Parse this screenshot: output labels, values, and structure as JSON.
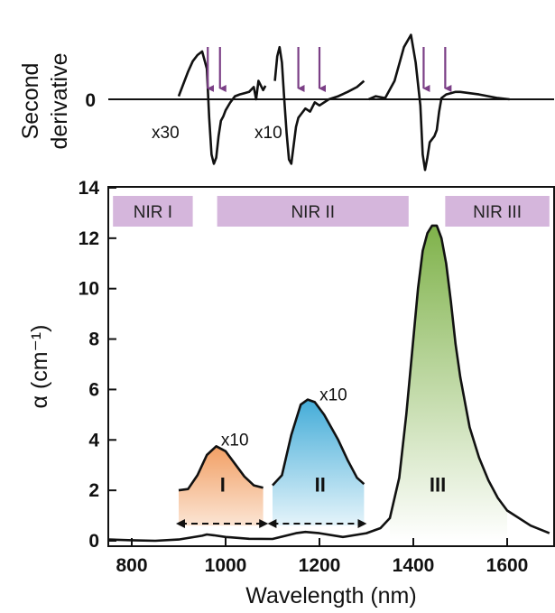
{
  "chart_data": [
    {
      "type": "line",
      "panel": "top",
      "ylabel_line1": "Second",
      "ylabel_line2": "derivative",
      "ytick_label": "0",
      "scale_labels": [
        "x30",
        "x10"
      ],
      "arrow_color": "#7b3f86",
      "arrow_x": [
        962,
        988,
        1155,
        1200,
        1422,
        1468
      ],
      "series": [
        {
          "segment": 1,
          "x": [
            900,
            910,
            920,
            930,
            940,
            950,
            960,
            965,
            970,
            975,
            980,
            985,
            990,
            995,
            1000,
            1010,
            1020,
            1030,
            1040,
            1050,
            1060,
            1065,
            1070,
            1080,
            1085
          ],
          "y": [
            0.05,
            0.25,
            0.45,
            0.62,
            0.72,
            0.78,
            0.5,
            -0.3,
            -0.9,
            -1.05,
            -0.95,
            -0.6,
            -0.35,
            -0.28,
            -0.18,
            -0.05,
            0.05,
            0.08,
            0.1,
            0.12,
            0.2,
            0.0,
            0.3,
            0.15,
            0.22
          ]
        },
        {
          "segment": 2,
          "x": [
            1105,
            1110,
            1115,
            1120,
            1125,
            1130,
            1135,
            1140,
            1145,
            1150,
            1155,
            1160,
            1170,
            1180,
            1190,
            1200,
            1220,
            1240,
            1260,
            1280,
            1295
          ],
          "y": [
            0.3,
            0.7,
            0.85,
            0.6,
            0.0,
            -0.55,
            -0.98,
            -1.05,
            -0.75,
            -0.45,
            -0.3,
            -0.25,
            -0.15,
            -0.2,
            -0.05,
            -0.1,
            0.0,
            0.05,
            0.12,
            0.2,
            0.3
          ]
        },
        {
          "segment": 3,
          "x": [
            1305,
            1320,
            1340,
            1360,
            1380,
            1395,
            1405,
            1415,
            1420,
            1425,
            1430,
            1435,
            1440,
            1445,
            1450,
            1455,
            1460,
            1470,
            1480,
            1490,
            1500,
            1520,
            1540,
            1560,
            1580,
            1605
          ],
          "y": [
            0.0,
            0.05,
            0.02,
            0.3,
            0.85,
            1.05,
            0.6,
            -0.1,
            -0.9,
            -1.15,
            -0.95,
            -0.7,
            -0.65,
            -0.6,
            -0.5,
            -0.2,
            0.02,
            0.08,
            0.1,
            0.12,
            0.12,
            0.1,
            0.08,
            0.05,
            0.02,
            0.0
          ]
        }
      ]
    },
    {
      "type": "line",
      "panel": "bottom",
      "xlabel": "Wavelength (nm)",
      "ylabel": "α (cm⁻¹)",
      "xlim": [
        750,
        1700
      ],
      "ylim": [
        -0.3,
        14
      ],
      "xticks": [
        800,
        1000,
        1200,
        1400,
        1600
      ],
      "yticks": [
        0,
        2,
        4,
        6,
        8,
        10,
        12,
        14
      ],
      "bands": [
        {
          "label": "NIR I",
          "start": 760,
          "end": 930
        },
        {
          "label": "NIR II",
          "start": 982,
          "end": 1390
        },
        {
          "label": "NIR III",
          "start": 1468,
          "end": 1690
        }
      ],
      "band_color": "#d5b6dc",
      "series": [
        {
          "x": [
            750,
            800,
            850,
            900,
            950,
            960,
            975,
            1000,
            1050,
            1100,
            1150,
            1170,
            1200,
            1250,
            1300,
            1330,
            1350,
            1370,
            1385,
            1400,
            1410,
            1420,
            1430,
            1440,
            1450,
            1460,
            1470,
            1480,
            1490,
            1500,
            1520,
            1540,
            1560,
            1580,
            1600,
            1650,
            1690
          ],
          "y": [
            0.05,
            0.02,
            0.0,
            0.05,
            0.2,
            0.25,
            0.22,
            0.15,
            0.08,
            0.07,
            0.3,
            0.35,
            0.3,
            0.15,
            0.3,
            0.5,
            0.9,
            2.5,
            5.0,
            8.0,
            10.0,
            11.5,
            12.2,
            12.5,
            12.5,
            12.0,
            11.0,
            9.5,
            7.8,
            6.5,
            4.5,
            3.3,
            2.4,
            1.7,
            1.2,
            0.6,
            0.3
          ]
        }
      ],
      "insets": [
        {
          "label": "I",
          "scale": "x10",
          "color": "#f2a46b",
          "x": [
            900,
            920,
            940,
            960,
            980,
            1000,
            1020,
            1040,
            1060,
            1080
          ],
          "y": [
            2.0,
            2.05,
            2.6,
            3.4,
            3.75,
            3.55,
            3.05,
            2.55,
            2.2,
            2.1
          ]
        },
        {
          "label": "II",
          "scale": "x10",
          "color": "#4db3d9",
          "x": [
            1100,
            1120,
            1140,
            1160,
            1175,
            1190,
            1210,
            1240,
            1260,
            1280,
            1295
          ],
          "y": [
            2.2,
            2.6,
            4.2,
            5.4,
            5.6,
            5.5,
            5.0,
            4.0,
            3.2,
            2.5,
            2.25
          ]
        }
      ],
      "peak_III_label": "III",
      "peak_III_color": "#86b54c",
      "ranges": [
        {
          "start": 900,
          "end": 1085
        },
        {
          "start": 1095,
          "end": 1295
        }
      ]
    }
  ]
}
